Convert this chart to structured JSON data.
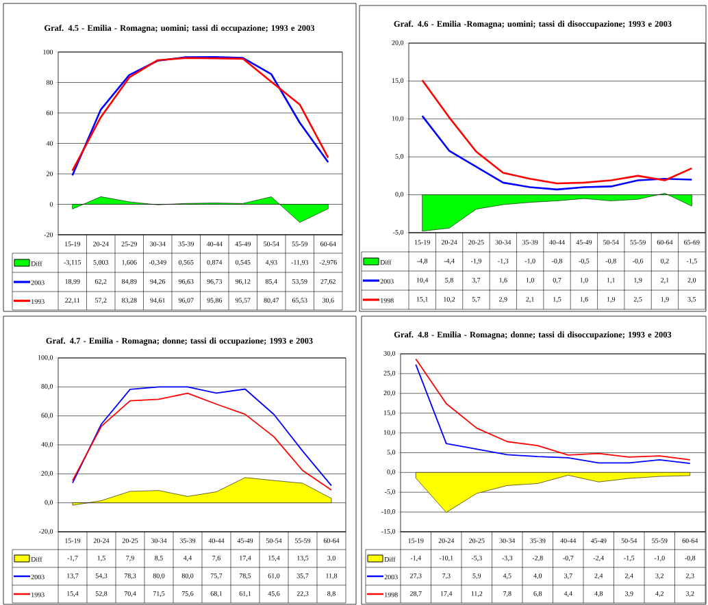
{
  "chart_data": [
    {
      "type": "line",
      "title": "Graf. 4.5 - Emilia - Romagna; uomini; tassi di occupazione; 1993 e 2003",
      "categories": [
        "15-19",
        "20-24",
        "25-29",
        "30-34",
        "35-39",
        "40-44",
        "45-49",
        "50-54",
        "55-59",
        "60-64"
      ],
      "ylim": [
        -20,
        100
      ],
      "yticks": [
        -20,
        0,
        20,
        40,
        60,
        80,
        100
      ],
      "grid": "y",
      "legend": "bottom left",
      "series": [
        {
          "name": "Diff",
          "type": "area",
          "color": "#00ff00",
          "values": [
            -3.115,
            5.003,
            1.606,
            -0.349,
            0.565,
            0.874,
            0.545,
            4.93,
            -11.93,
            -2.976
          ],
          "value_labels": [
            "-3,115",
            "5,003",
            "1,606",
            "-0,349",
            "0,565",
            "0,874",
            "0,545",
            "4,93",
            "-11,93",
            "-2,976"
          ]
        },
        {
          "name": "2003",
          "color": "#0000ff",
          "values": [
            18.99,
            62.2,
            84.89,
            94.26,
            96.63,
            96.73,
            96.12,
            85.4,
            53.59,
            27.62
          ],
          "value_labels": [
            "18,99",
            "62,2",
            "84,89",
            "94,26",
            "96,63",
            "96,73",
            "96,12",
            "85,4",
            "53,59",
            "27,62"
          ]
        },
        {
          "name": "1993",
          "color": "#ff0000",
          "values": [
            22.11,
            57.2,
            83.28,
            94.61,
            96.07,
            95.86,
            95.57,
            80.47,
            65.53,
            30.6
          ],
          "value_labels": [
            "22,11",
            "57,2",
            "83,28",
            "94,61",
            "96,07",
            "95,86",
            "95,57",
            "80,47",
            "65,53",
            "30,6"
          ]
        }
      ]
    },
    {
      "type": "line",
      "title": "Graf. 4.6 - Emilia -Romagna; uomini; tassi di disoccupazione; 1993 e 2003",
      "categories": [
        "15-19",
        "20-24",
        "20-25",
        "30-34",
        "35-39",
        "40-44",
        "45-49",
        "50-54",
        "55-59",
        "60-64",
        "65-69"
      ],
      "ylim": [
        -5,
        20
      ],
      "yticks": [
        {
          "value": -5,
          "label": "-5,0"
        },
        {
          "value": 0,
          "label": "0,0"
        },
        {
          "value": 5,
          "label": "5,0"
        },
        {
          "value": 10,
          "label": "10,0"
        },
        {
          "value": 15,
          "label": "15,0"
        },
        {
          "value": 20,
          "label": "20,0"
        }
      ],
      "grid": "y",
      "legend": "bottom left",
      "series": [
        {
          "name": "Diff",
          "type": "area",
          "color": "#00ff00",
          "values": [
            -4.8,
            -4.4,
            -1.9,
            -1.3,
            -1.0,
            -0.8,
            -0.5,
            -0.8,
            -0.6,
            0.2,
            -1.5
          ],
          "value_labels": [
            "-4,8",
            "-4,4",
            "-1,9",
            "-1,3",
            "-1,0",
            "-0,8",
            "-0,5",
            "-0,8",
            "-0,6",
            "0,2",
            "-1,5"
          ]
        },
        {
          "name": "2003",
          "color": "#0000ff",
          "values": [
            10.4,
            5.8,
            3.7,
            1.6,
            1.0,
            0.7,
            1.0,
            1.1,
            1.9,
            2.1,
            2.0
          ],
          "value_labels": [
            "10,4",
            "5,8",
            "3,7",
            "1,6",
            "1,0",
            "0,7",
            "1,0",
            "1,1",
            "1,9",
            "2,1",
            "2,0"
          ]
        },
        {
          "name": "1998",
          "color": "#ff0000",
          "values": [
            15.1,
            10.2,
            5.7,
            2.9,
            2.1,
            1.5,
            1.6,
            1.9,
            2.5,
            1.9,
            3.5
          ],
          "value_labels": [
            "15,1",
            "10,2",
            "5,7",
            "2,9",
            "2,1",
            "1,5",
            "1,6",
            "1,9",
            "2,5",
            "1,9",
            "3,5"
          ]
        }
      ]
    },
    {
      "type": "line",
      "title": "Graf. 4.7 - Emilia - Romagna; donne; tassi di occupazione; 1993 e 2003",
      "categories": [
        "15-19",
        "20-24",
        "20-25",
        "30-34",
        "35-39",
        "40-44",
        "45-49",
        "50-54",
        "55-59",
        "60-64"
      ],
      "ylim": [
        -20,
        100
      ],
      "yticks": [
        {
          "value": -20,
          "label": "-20,0"
        },
        {
          "value": 0,
          "label": "0,0"
        },
        {
          "value": 20,
          "label": "20,0"
        },
        {
          "value": 40,
          "label": "40,0"
        },
        {
          "value": 60,
          "label": "60,0"
        },
        {
          "value": 80,
          "label": "80,0"
        },
        {
          "value": 100,
          "label": "100,0"
        }
      ],
      "grid": "y",
      "legend": "bottom left",
      "series": [
        {
          "name": "Diff",
          "type": "area",
          "color": "#ffff00",
          "values": [
            -1.7,
            1.5,
            7.9,
            8.5,
            4.4,
            7.6,
            17.4,
            15.4,
            13.5,
            3.0
          ],
          "value_labels": [
            "-1,7",
            "1,5",
            "7,9",
            "8,5",
            "4,4",
            "7,6",
            "17,4",
            "15,4",
            "13,5",
            "3,0"
          ]
        },
        {
          "name": "2003",
          "color": "#0000ff",
          "values": [
            13.7,
            54.3,
            78.3,
            80.0,
            80.0,
            75.7,
            78.5,
            61.0,
            35.7,
            11.8
          ],
          "value_labels": [
            "13,7",
            "54,3",
            "78,3",
            "80,0",
            "80,0",
            "75,7",
            "78,5",
            "61,0",
            "35,7",
            "11,8"
          ]
        },
        {
          "name": "1993",
          "color": "#ff0000",
          "values": [
            15.4,
            52.8,
            70.4,
            71.5,
            75.6,
            68.1,
            61.1,
            45.6,
            22.3,
            8.8
          ],
          "value_labels": [
            "15,4",
            "52,8",
            "70,4",
            "71,5",
            "75,6",
            "68,1",
            "61,1",
            "45,6",
            "22,3",
            "8,8"
          ]
        }
      ]
    },
    {
      "type": "line",
      "title": "Graf. 4.8 - Emilia - Romagna; donne; tassi di disoccupazione; 1993 e 2003",
      "categories": [
        "15-19",
        "20-24",
        "20-25",
        "30-34",
        "35-39",
        "40-44",
        "45-49",
        "50-54",
        "55-59",
        "60-64"
      ],
      "ylim": [
        -15,
        30
      ],
      "yticks": [
        {
          "value": -15,
          "label": "-15,0"
        },
        {
          "value": -10,
          "label": "-10,0"
        },
        {
          "value": -5,
          "label": "-5,0"
        },
        {
          "value": 0,
          "label": "0,0"
        },
        {
          "value": 5,
          "label": "5,0"
        },
        {
          "value": 10,
          "label": "10,0"
        },
        {
          "value": 15,
          "label": "15,0"
        },
        {
          "value": 20,
          "label": "20,0"
        },
        {
          "value": 25,
          "label": "25,0"
        },
        {
          "value": 30,
          "label": "30,0"
        }
      ],
      "grid": "y",
      "legend": "bottom left",
      "series": [
        {
          "name": "Diff",
          "type": "area",
          "color": "#ffff00",
          "values": [
            -1.4,
            -10.1,
            -5.3,
            -3.3,
            -2.8,
            -0.7,
            -2.4,
            -1.5,
            -1.0,
            -0.8
          ],
          "value_labels": [
            "-1,4",
            "-10,1",
            "-5,3",
            "-3,3",
            "-2,8",
            "-0,7",
            "-2,4",
            "-1,5",
            "-1,0",
            "-0,8"
          ]
        },
        {
          "name": "2003",
          "color": "#0000ff",
          "values": [
            27.3,
            7.3,
            5.9,
            4.5,
            4.0,
            3.7,
            2.4,
            2.4,
            3.2,
            2.3
          ],
          "value_labels": [
            "27,3",
            "7,3",
            "5,9",
            "4,5",
            "4,0",
            "3,7",
            "2,4",
            "2,4",
            "3,2",
            "2,3"
          ]
        },
        {
          "name": "1998",
          "color": "#ff0000",
          "values": [
            28.7,
            17.4,
            11.2,
            7.8,
            6.8,
            4.4,
            4.8,
            3.9,
            4.2,
            3.2
          ],
          "value_labels": [
            "28,7",
            "17,4",
            "11,2",
            "7,8",
            "6,8",
            "4,4",
            "4,8",
            "3,9",
            "4,2",
            "3,2"
          ]
        }
      ]
    }
  ]
}
